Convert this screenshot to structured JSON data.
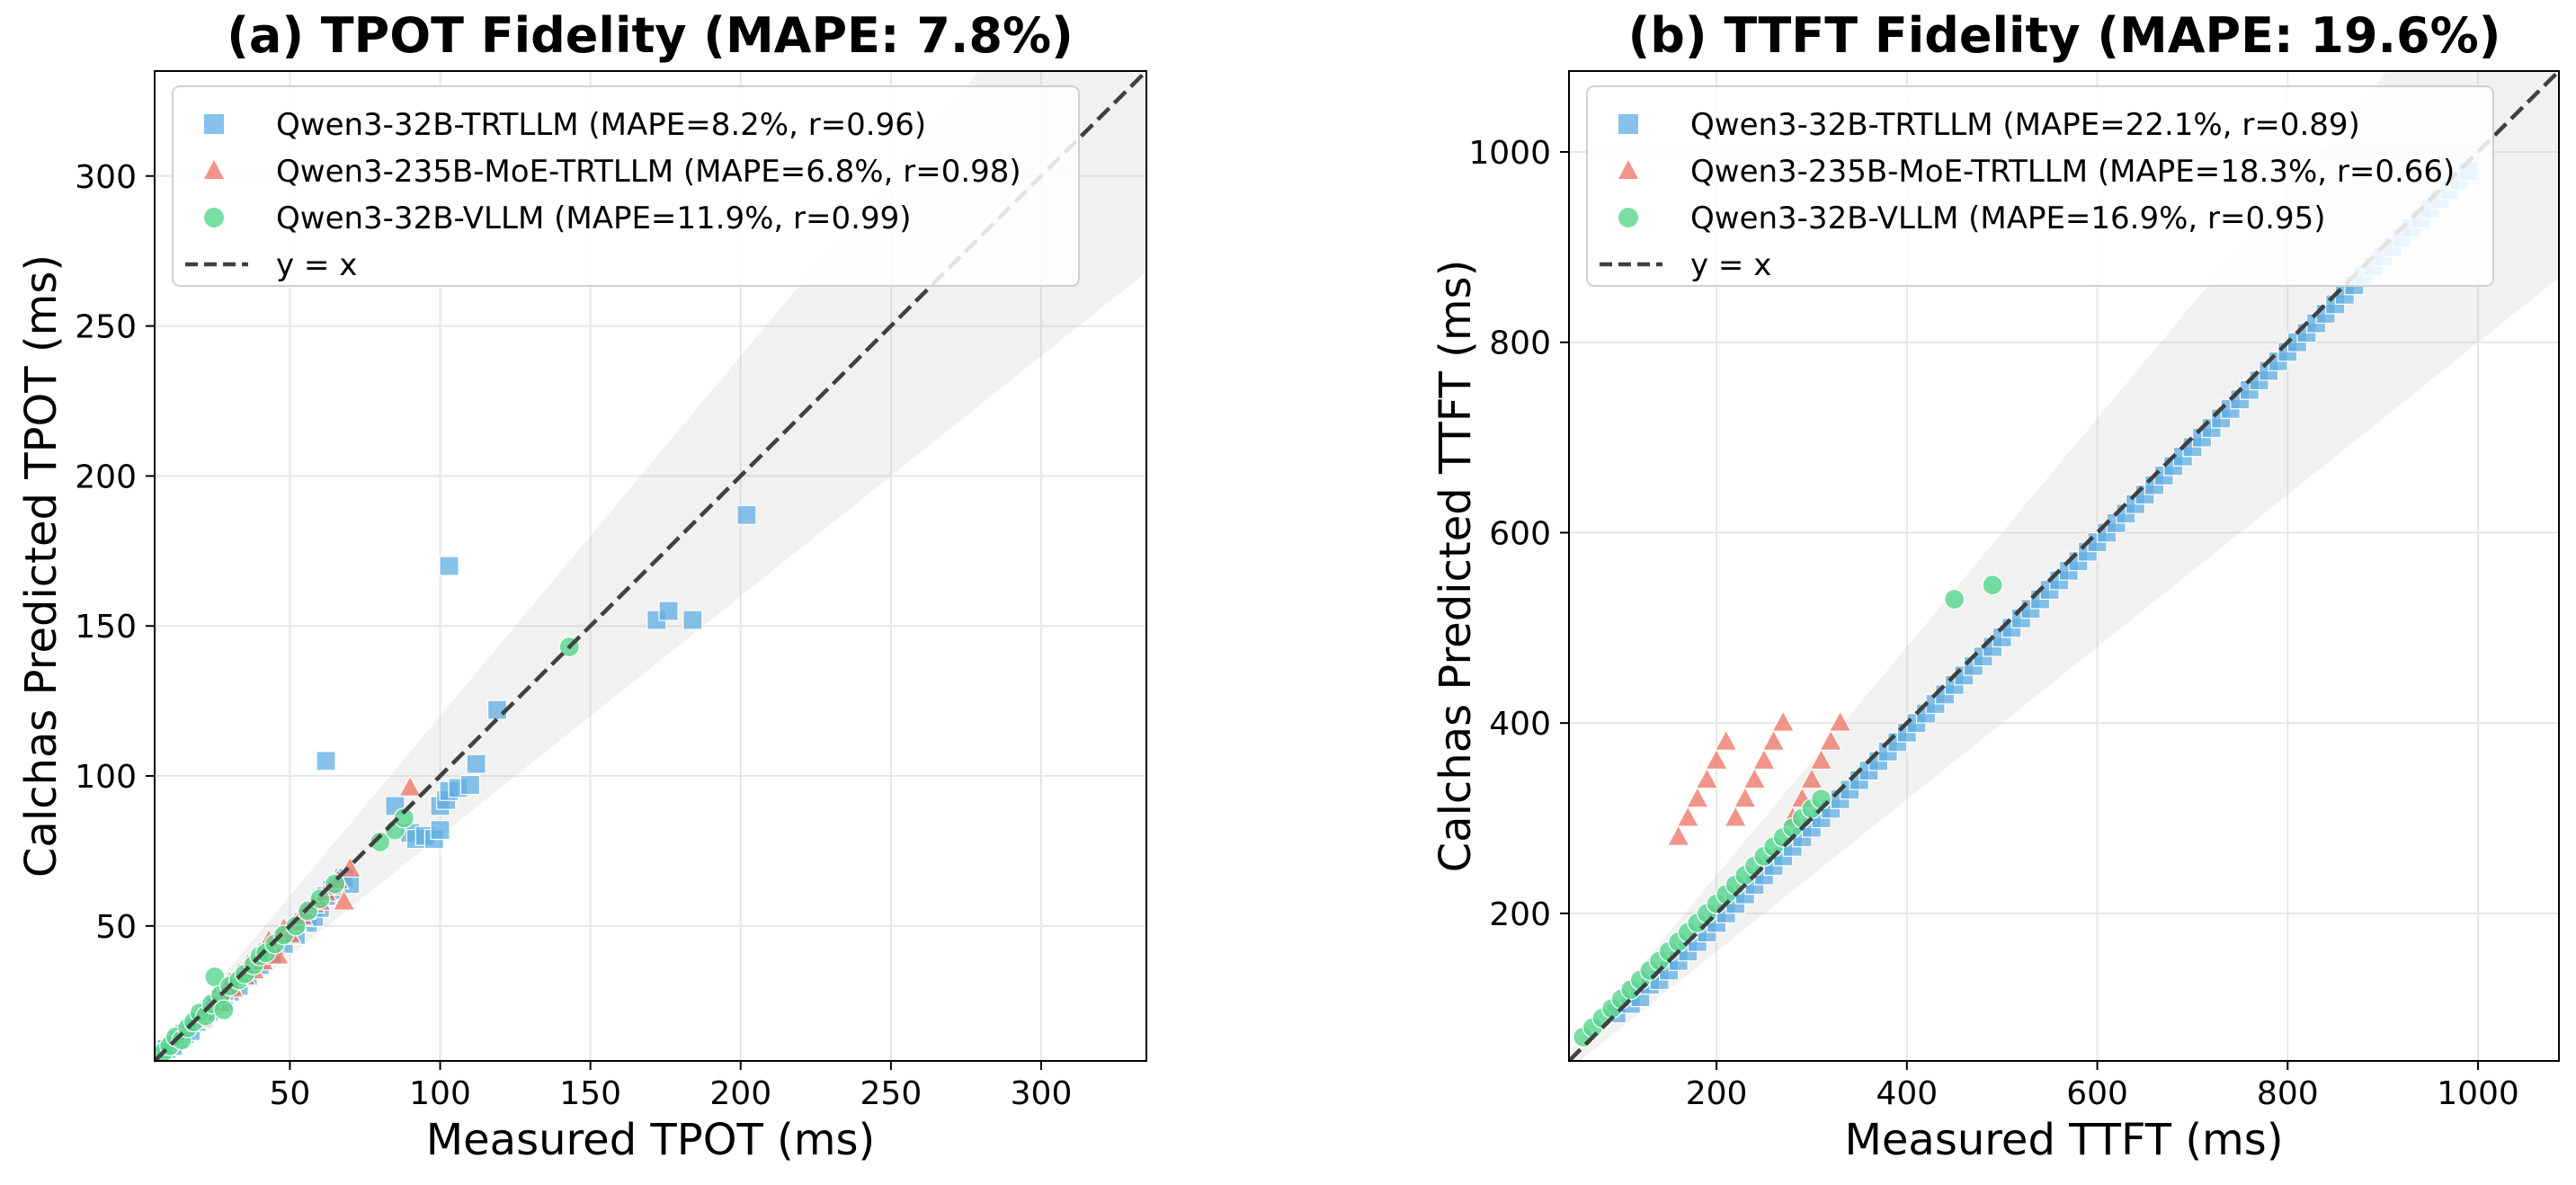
{
  "chart_data": [
    {
      "type": "scatter",
      "title": "(a) TPOT Fidelity (MAPE: 7.8%)",
      "xlabel": "Measured TPOT (ms)",
      "ylabel": "Calchas Predicted TPOT (ms)",
      "xlim": [
        5,
        335
      ],
      "ylim": [
        5,
        335
      ],
      "xticks": [
        50,
        100,
        150,
        200,
        250,
        300
      ],
      "yticks": [
        50,
        100,
        150,
        200,
        250,
        300
      ],
      "grid": true,
      "legend_position": "top-left",
      "band": 0.2,
      "series": [
        {
          "name": "Qwen3-32B-TRTLLM (MAPE=8.2%, r=0.96)",
          "marker": "square",
          "color": "#5dade2",
          "points": [
            [
              7,
              7
            ],
            [
              9,
              9
            ],
            [
              11,
              10
            ],
            [
              13,
              12
            ],
            [
              15,
              14
            ],
            [
              17,
              15
            ],
            [
              19,
              18
            ],
            [
              21,
              19
            ],
            [
              23,
              21
            ],
            [
              25,
              24
            ],
            [
              28,
              25
            ],
            [
              30,
              28
            ],
            [
              33,
              30
            ],
            [
              36,
              33
            ],
            [
              40,
              37
            ],
            [
              44,
              40
            ],
            [
              48,
              44
            ],
            [
              52,
              47
            ],
            [
              56,
              51
            ],
            [
              58,
              53
            ],
            [
              60,
              56
            ],
            [
              62,
              60
            ],
            [
              64,
              62
            ],
            [
              66,
              64
            ],
            [
              68,
              66
            ],
            [
              70,
              64
            ],
            [
              62,
              105
            ],
            [
              85,
              90
            ],
            [
              90,
              81
            ],
            [
              92,
              79
            ],
            [
              95,
              80
            ],
            [
              98,
              79
            ],
            [
              100,
              82
            ],
            [
              100,
              90
            ],
            [
              102,
              92
            ],
            [
              103,
              95
            ],
            [
              106,
              96
            ],
            [
              110,
              97
            ],
            [
              112,
              104
            ],
            [
              119,
              122
            ],
            [
              103,
              170
            ],
            [
              172,
              152
            ],
            [
              176,
              155
            ],
            [
              184,
              152
            ],
            [
              202,
              187
            ]
          ]
        },
        {
          "name": "Qwen3-235B-MoE-TRTLLM (MAPE=6.8%, r=0.98)",
          "marker": "triangle",
          "color": "#ec7063",
          "points": [
            [
              20,
              19
            ],
            [
              22,
              21
            ],
            [
              24,
              23
            ],
            [
              25,
              26
            ],
            [
              27,
              24
            ],
            [
              28,
              28
            ],
            [
              30,
              31
            ],
            [
              31,
              29
            ],
            [
              33,
              34
            ],
            [
              35,
              33
            ],
            [
              36,
              37
            ],
            [
              38,
              35
            ],
            [
              40,
              41
            ],
            [
              41,
              38
            ],
            [
              43,
              45
            ],
            [
              45,
              43
            ],
            [
              46,
              40
            ],
            [
              48,
              49
            ],
            [
              50,
              47
            ],
            [
              52,
              51
            ],
            [
              54,
              53
            ],
            [
              55,
              55
            ],
            [
              58,
              57
            ],
            [
              60,
              58
            ],
            [
              62,
              61
            ],
            [
              64,
              63
            ],
            [
              66,
              65
            ],
            [
              68,
              58
            ],
            [
              70,
              69
            ],
            [
              90,
              96
            ]
          ]
        },
        {
          "name": "Qwen3-32B-VLLM (MAPE=11.9%, r=0.99)",
          "marker": "circle",
          "color": "#58d68d",
          "points": [
            [
              8,
              8
            ],
            [
              10,
              10
            ],
            [
              12,
              13
            ],
            [
              14,
              12
            ],
            [
              16,
              16
            ],
            [
              18,
              18
            ],
            [
              20,
              21
            ],
            [
              22,
              20
            ],
            [
              24,
              24
            ],
            [
              25,
              33
            ],
            [
              27,
              27
            ],
            [
              28,
              22
            ],
            [
              30,
              30
            ],
            [
              33,
              32
            ],
            [
              35,
              34
            ],
            [
              38,
              37
            ],
            [
              40,
              40
            ],
            [
              42,
              41
            ],
            [
              45,
              44
            ],
            [
              48,
              47
            ],
            [
              52,
              50
            ],
            [
              56,
              55
            ],
            [
              60,
              59
            ],
            [
              65,
              64
            ],
            [
              80,
              78
            ],
            [
              85,
              82
            ],
            [
              88,
              86
            ],
            [
              143,
              143
            ]
          ]
        }
      ]
    },
    {
      "type": "scatter",
      "title": "(b) TTFT Fidelity (MAPE: 19.6%)",
      "xlabel": "Measured TTFT (ms)",
      "ylabel": "Calchas Predicted TTFT (ms)",
      "xlim": [
        45,
        1085
      ],
      "ylim": [
        45,
        1085
      ],
      "xticks": [
        200,
        400,
        600,
        800,
        1000
      ],
      "yticks": [
        200,
        400,
        600,
        800,
        1000
      ],
      "grid": true,
      "legend_position": "top-left",
      "band": 0.2,
      "series": [
        {
          "name": "Qwen3-32B-TRTLLM (MAPE=22.1%, r=0.89)",
          "marker": "square",
          "color": "#5dade2",
          "points": [
            [
              95,
              95
            ],
            [
              110,
              105
            ],
            [
              120,
              112
            ],
            [
              130,
              125
            ],
            [
              140,
              130
            ],
            [
              150,
              140
            ],
            [
              160,
              150
            ],
            [
              170,
              160
            ],
            [
              180,
              170
            ],
            [
              190,
              180
            ],
            [
              200,
              190
            ],
            [
              210,
              200
            ],
            [
              220,
              210
            ],
            [
              230,
              220
            ],
            [
              240,
              230
            ],
            [
              250,
              240
            ],
            [
              260,
              250
            ],
            [
              270,
              260
            ],
            [
              280,
              270
            ],
            [
              290,
              280
            ],
            [
              300,
              290
            ],
            [
              310,
              300
            ],
            [
              320,
              310
            ],
            [
              330,
              320
            ],
            [
              340,
              330
            ],
            [
              350,
              340
            ],
            [
              360,
              350
            ],
            [
              370,
              360
            ],
            [
              380,
              370
            ],
            [
              390,
              380
            ],
            [
              400,
              390
            ],
            [
              410,
              400
            ],
            [
              420,
              410
            ],
            [
              430,
              420
            ],
            [
              440,
              430
            ],
            [
              450,
              440
            ],
            [
              460,
              450
            ],
            [
              470,
              460
            ],
            [
              480,
              470
            ],
            [
              490,
              480
            ],
            [
              500,
              490
            ],
            [
              510,
              500
            ],
            [
              520,
              510
            ],
            [
              530,
              520
            ],
            [
              540,
              530
            ],
            [
              550,
              540
            ],
            [
              560,
              550
            ],
            [
              570,
              560
            ],
            [
              580,
              570
            ],
            [
              590,
              580
            ],
            [
              600,
              590
            ],
            [
              610,
              600
            ],
            [
              620,
              610
            ],
            [
              630,
              620
            ],
            [
              640,
              630
            ],
            [
              650,
              640
            ],
            [
              660,
              650
            ],
            [
              670,
              660
            ],
            [
              680,
              670
            ],
            [
              690,
              680
            ],
            [
              700,
              690
            ],
            [
              710,
              700
            ],
            [
              720,
              710
            ],
            [
              730,
              720
            ],
            [
              740,
              730
            ],
            [
              750,
              740
            ],
            [
              760,
              750
            ],
            [
              770,
              760
            ],
            [
              780,
              770
            ],
            [
              790,
              780
            ],
            [
              800,
              790
            ],
            [
              810,
              800
            ],
            [
              820,
              810
            ],
            [
              830,
              820
            ],
            [
              840,
              830
            ],
            [
              850,
              840
            ],
            [
              860,
              850
            ],
            [
              870,
              860
            ],
            [
              880,
              870
            ],
            [
              890,
              880
            ],
            [
              900,
              890
            ],
            [
              910,
              900
            ],
            [
              920,
              910
            ],
            [
              930,
              920
            ],
            [
              940,
              930
            ],
            [
              950,
              940
            ],
            [
              960,
              950
            ],
            [
              970,
              960
            ],
            [
              980,
              970
            ],
            [
              990,
              980
            ]
          ]
        },
        {
          "name": "Qwen3-235B-MoE-TRTLLM (MAPE=18.3%, r=0.66)",
          "marker": "triangle",
          "color": "#ec7063",
          "points": [
            [
              160,
              280
            ],
            [
              170,
              300
            ],
            [
              180,
              320
            ],
            [
              190,
              340
            ],
            [
              200,
              360
            ],
            [
              210,
              380
            ],
            [
              220,
              300
            ],
            [
              230,
              320
            ],
            [
              240,
              340
            ],
            [
              250,
              360
            ],
            [
              260,
              380
            ],
            [
              270,
              400
            ],
            [
              280,
              300
            ],
            [
              290,
              320
            ],
            [
              300,
              340
            ],
            [
              310,
              360
            ],
            [
              320,
              380
            ],
            [
              330,
              400
            ]
          ]
        },
        {
          "name": "Qwen3-32B-VLLM (MAPE=16.9%, r=0.95)",
          "marker": "circle",
          "color": "#58d68d",
          "points": [
            [
              60,
              70
            ],
            [
              70,
              80
            ],
            [
              80,
              90
            ],
            [
              90,
              100
            ],
            [
              100,
              110
            ],
            [
              110,
              120
            ],
            [
              120,
              130
            ],
            [
              130,
              140
            ],
            [
              140,
              150
            ],
            [
              150,
              160
            ],
            [
              160,
              170
            ],
            [
              170,
              180
            ],
            [
              180,
              190
            ],
            [
              190,
              200
            ],
            [
              200,
              210
            ],
            [
              210,
              220
            ],
            [
              220,
              230
            ],
            [
              230,
              240
            ],
            [
              240,
              250
            ],
            [
              250,
              260
            ],
            [
              260,
              270
            ],
            [
              270,
              280
            ],
            [
              280,
              290
            ],
            [
              290,
              300
            ],
            [
              300,
              310
            ],
            [
              310,
              320
            ],
            [
              450,
              530
            ],
            [
              490,
              545
            ]
          ]
        }
      ]
    }
  ],
  "legend": {
    "identity_label": "y = x"
  }
}
